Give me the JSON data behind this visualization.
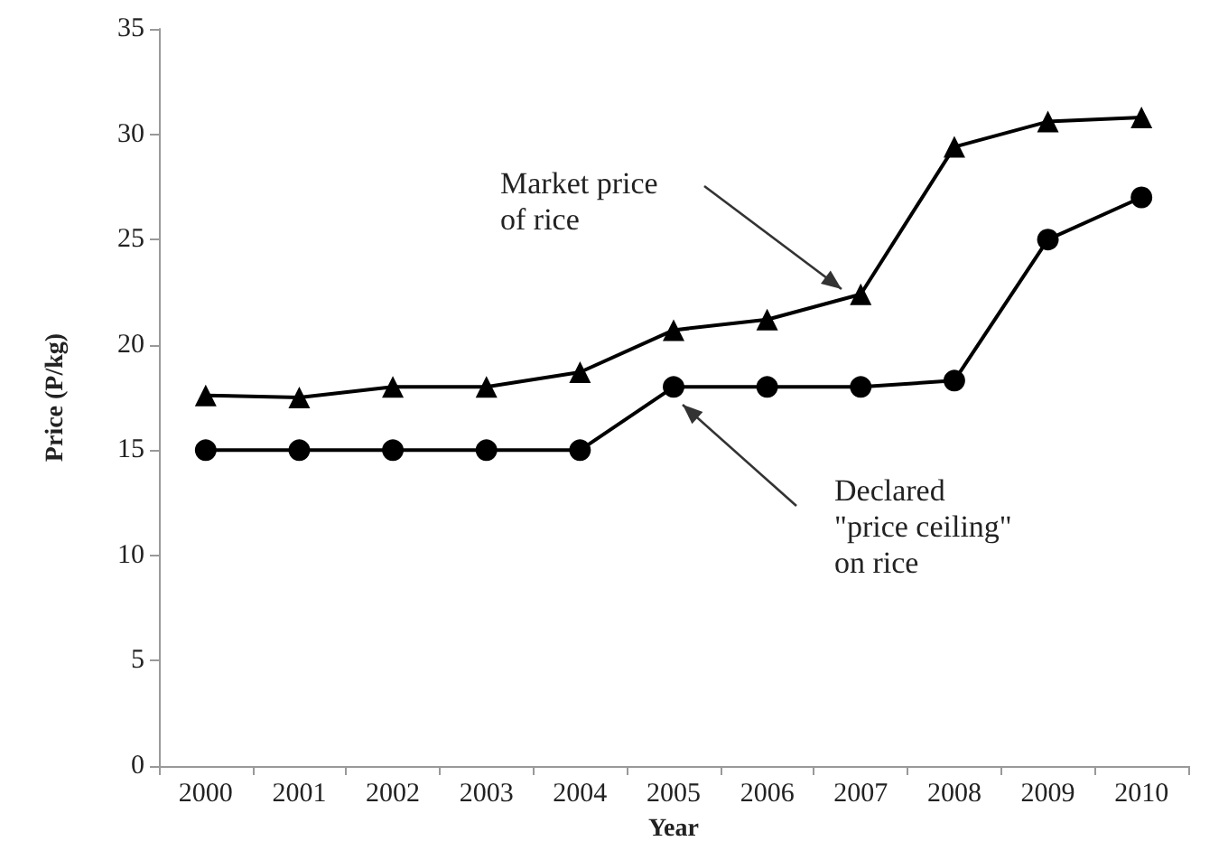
{
  "chart_data": {
    "type": "line",
    "xlabel": "Year",
    "ylabel": "Price (P/kg)",
    "categories": [
      "2000",
      "2001",
      "2002",
      "2003",
      "2004",
      "2005",
      "2006",
      "2007",
      "2008",
      "2009",
      "2010"
    ],
    "series": [
      {
        "color": "#000000",
        "marker": "triangle",
        "values": [
          17.6,
          17.5,
          18.0,
          18.0,
          18.7,
          20.7,
          21.2,
          22.4,
          29.4,
          30.6,
          30.8
        ]
      },
      {
        "color": "#000000",
        "marker": "circle",
        "values": [
          15,
          15,
          15,
          15,
          15,
          18,
          18,
          18,
          18.3,
          25,
          27
        ]
      }
    ],
    "ylim": [
      0,
      35
    ],
    "yticks": [
      0,
      5,
      10,
      15,
      20,
      25,
      30,
      35
    ],
    "grid": false,
    "line_style": "solid",
    "annotations": [
      "Market price\nof rice",
      "Declared\n\"price ceiling\"\non rice"
    ]
  }
}
